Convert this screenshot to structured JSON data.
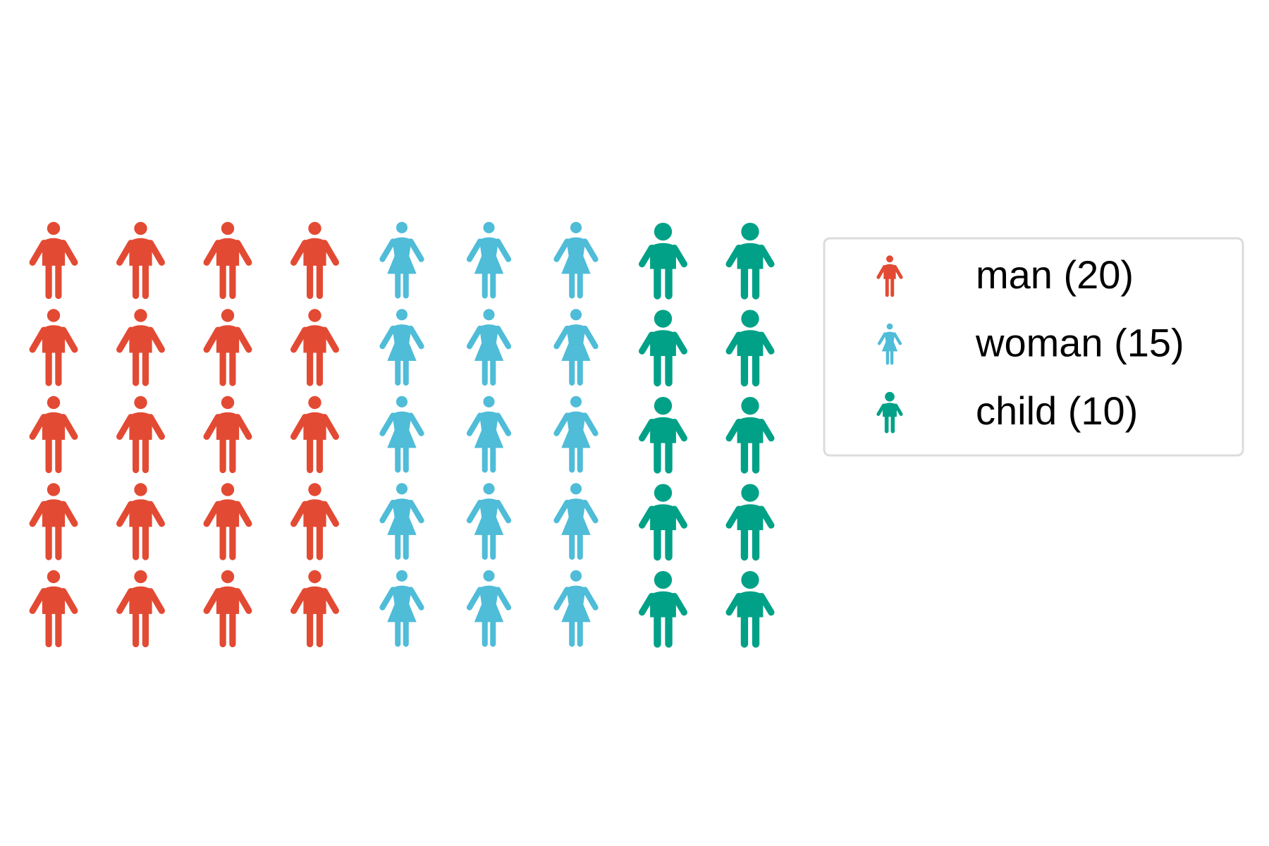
{
  "chart_data": {
    "type": "pictogram",
    "series": [
      {
        "name": "man (20)",
        "color": "#e34a33",
        "value": 20
      },
      {
        "name": "woman (15)",
        "color": "#4fbcd8",
        "value": 15
      },
      {
        "name": "child (10)",
        "color": "#00a187",
        "value": 10
      }
    ]
  }
}
